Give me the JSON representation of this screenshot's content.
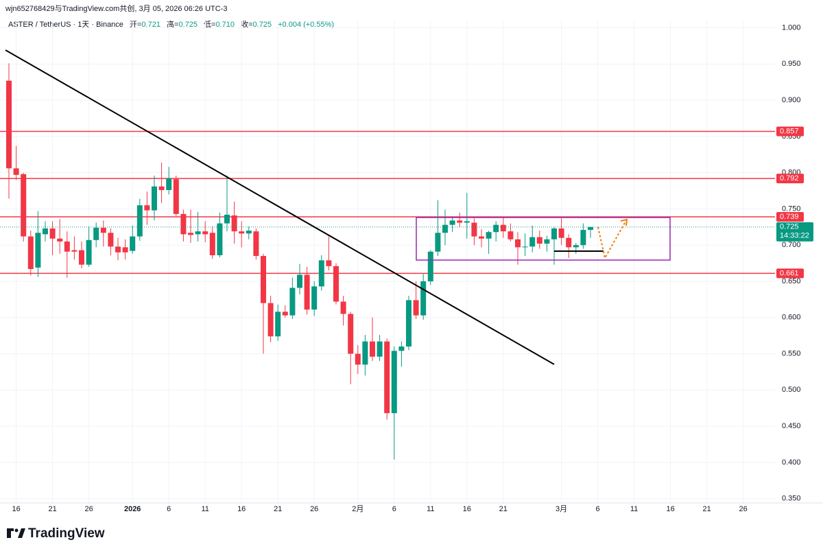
{
  "header": {
    "source": "wjn652768429与TradingView.com共创, 3月 05, 2026 06:26 UTC-3",
    "symbol": "ASTER / TetherUS · 1天 · Binance",
    "fields": [
      {
        "label": "开=",
        "value": "0.721"
      },
      {
        "label": "高=",
        "value": "0.725"
      },
      {
        "label": "低=",
        "value": "0.710"
      },
      {
        "label": "收=",
        "value": "0.725"
      }
    ],
    "change": "+0.004 (+0.55%)"
  },
  "chart_data": {
    "type": "candlestick",
    "categories": [
      null,
      "16",
      null,
      null,
      null,
      null,
      "21",
      null,
      null,
      null,
      null,
      "26",
      null,
      null,
      null,
      null,
      null,
      "2026",
      null,
      null,
      null,
      null,
      "6",
      null,
      null,
      null,
      null,
      "11",
      null,
      null,
      null,
      null,
      "16",
      null,
      null,
      null,
      null,
      "21",
      null,
      null,
      null,
      null,
      "26",
      null,
      null,
      null,
      null,
      null,
      "2月",
      null,
      null,
      null,
      null,
      "6",
      null,
      null,
      null,
      null,
      "11",
      null,
      null,
      null,
      null,
      "16",
      null,
      null,
      null,
      null,
      "21",
      null,
      null,
      null,
      null,
      null,
      null,
      null,
      "3月",
      null,
      null,
      null,
      null,
      "6",
      null,
      null,
      null,
      null,
      "11",
      null,
      null,
      null,
      null,
      "16",
      null,
      null,
      null,
      null,
      "21",
      null,
      null,
      null,
      null,
      "26",
      null,
      null,
      null,
      null
    ],
    "open": [
      0.927,
      0.806,
      0.798,
      0.712,
      0.669,
      0.715,
      0.723,
      0.709,
      0.705,
      0.693,
      0.693,
      0.673,
      0.707,
      0.724,
      0.717,
      0.698,
      0.697,
      0.692,
      0.712,
      0.755,
      0.748,
      0.781,
      0.776,
      0.791,
      0.743,
      0.717,
      0.715,
      0.719,
      0.717,
      0.686,
      0.73,
      0.741,
      0.719,
      0.716,
      0.719,
      0.685,
      0.62,
      0.574,
      0.608,
      0.603,
      0.641,
      0.659,
      0.611,
      0.643,
      0.679,
      0.671,
      0.622,
      0.605,
      0.55,
      0.535,
      0.567,
      0.546,
      0.567,
      0.468,
      0.554,
      0.56,
      0.624,
      0.603,
      0.65,
      0.691,
      0.717,
      0.728,
      0.734,
      0.731,
      0.731,
      0.712,
      0.709,
      0.718,
      0.728,
      0.719,
      0.708,
      0.697,
      0.698,
      0.711,
      0.702,
      0.708,
      0.723,
      0.71,
      0.697,
      0.7,
      0.721,
      null,
      null,
      null,
      null,
      null,
      null,
      null,
      null,
      null,
      null,
      null,
      null,
      null,
      null,
      null,
      null,
      null,
      null,
      null,
      null,
      null,
      null,
      null,
      null,
      null
    ],
    "high": [
      0.951,
      0.837,
      0.8,
      0.72,
      0.747,
      0.733,
      0.733,
      0.736,
      0.719,
      0.712,
      0.705,
      0.726,
      0.731,
      0.734,
      0.723,
      0.71,
      0.708,
      0.727,
      0.764,
      0.774,
      0.796,
      0.814,
      0.808,
      0.796,
      0.749,
      0.749,
      0.746,
      0.733,
      0.726,
      0.745,
      0.796,
      0.76,
      0.733,
      0.726,
      0.723,
      0.688,
      0.63,
      0.618,
      0.617,
      0.655,
      0.674,
      0.67,
      0.65,
      0.686,
      0.712,
      0.675,
      0.63,
      0.608,
      0.562,
      0.576,
      0.6,
      0.576,
      0.571,
      0.56,
      0.567,
      0.63,
      0.65,
      0.66,
      0.693,
      0.762,
      0.749,
      0.74,
      0.745,
      0.772,
      0.737,
      0.722,
      0.72,
      0.733,
      0.739,
      0.73,
      0.718,
      0.716,
      0.727,
      0.72,
      0.713,
      0.725,
      0.737,
      0.715,
      0.703,
      0.73,
      0.725,
      null,
      null,
      null,
      null,
      null,
      null,
      null,
      null,
      null,
      null,
      null,
      null,
      null,
      null,
      null,
      null,
      null,
      null,
      null,
      null,
      null,
      null,
      null,
      null,
      null
    ],
    "low": [
      0.764,
      0.79,
      0.705,
      0.658,
      0.656,
      0.705,
      0.686,
      0.688,
      0.655,
      0.68,
      0.668,
      0.67,
      0.697,
      0.698,
      0.686,
      0.679,
      0.68,
      0.688,
      0.706,
      0.728,
      0.734,
      0.758,
      0.77,
      0.74,
      0.705,
      0.703,
      0.705,
      0.704,
      0.681,
      0.683,
      0.719,
      0.702,
      0.697,
      0.708,
      0.68,
      0.55,
      0.566,
      0.568,
      0.6,
      0.598,
      0.632,
      0.604,
      0.602,
      0.637,
      0.665,
      0.618,
      0.589,
      0.508,
      0.522,
      0.52,
      0.54,
      0.54,
      0.459,
      0.404,
      0.532,
      0.555,
      0.598,
      0.597,
      0.645,
      0.685,
      0.7,
      0.718,
      0.725,
      0.709,
      0.7,
      0.697,
      0.688,
      0.705,
      0.71,
      0.705,
      0.673,
      0.685,
      0.69,
      0.695,
      0.691,
      0.673,
      0.7,
      0.682,
      0.688,
      0.695,
      0.71,
      null,
      null,
      null,
      null,
      null,
      null,
      null,
      null,
      null,
      null,
      null,
      null,
      null,
      null,
      null,
      null,
      null,
      null,
      null,
      null,
      null,
      null,
      null,
      null,
      null
    ],
    "close": [
      0.806,
      0.797,
      0.712,
      0.667,
      0.717,
      0.723,
      0.709,
      0.705,
      0.691,
      0.691,
      0.673,
      0.707,
      0.724,
      0.717,
      0.698,
      0.69,
      0.69,
      0.712,
      0.755,
      0.748,
      0.781,
      0.776,
      0.792,
      0.743,
      0.715,
      0.714,
      0.719,
      0.715,
      0.686,
      0.73,
      0.742,
      0.719,
      0.716,
      0.72,
      0.685,
      0.62,
      0.574,
      0.608,
      0.603,
      0.641,
      0.659,
      0.611,
      0.643,
      0.679,
      0.671,
      0.622,
      0.605,
      0.55,
      0.535,
      0.567,
      0.546,
      0.567,
      0.468,
      0.554,
      0.56,
      0.624,
      0.603,
      0.65,
      0.691,
      0.717,
      0.728,
      0.734,
      0.731,
      0.733,
      0.712,
      0.709,
      0.718,
      0.728,
      0.719,
      0.708,
      0.697,
      0.698,
      0.711,
      0.702,
      0.708,
      0.723,
      0.71,
      0.697,
      0.7,
      0.721,
      0.725,
      null,
      null,
      null,
      null,
      null,
      null,
      null,
      null,
      null,
      null,
      null,
      null,
      null,
      null,
      null,
      null,
      null,
      null,
      null,
      null,
      null,
      null,
      null,
      null,
      null
    ],
    "up_color": "#089981",
    "down_color": "#f23645",
    "ylim": [
      0.344,
      1.01
    ],
    "yticks": [
      {
        "value": 1,
        "label": "1.000"
      },
      {
        "value": 0.95,
        "label": "0.950"
      },
      {
        "value": 0.9,
        "label": "0.900"
      },
      {
        "value": 0.85,
        "label": "0.850"
      },
      {
        "value": 0.8,
        "label": "0.800"
      },
      {
        "value": 0.75,
        "label": "0.750"
      },
      {
        "value": 0.7,
        "label": "0.700"
      },
      {
        "value": 0.65,
        "label": "0.650"
      },
      {
        "value": 0.6,
        "label": "0.600"
      },
      {
        "value": 0.55,
        "label": "0.550"
      },
      {
        "value": 0.5,
        "label": "0.500"
      },
      {
        "value": 0.45,
        "label": "0.450"
      },
      {
        "value": 0.4,
        "label": "0.400"
      },
      {
        "value": 0.35,
        "label": "0.350"
      }
    ],
    "grid": true,
    "levels": [
      0.857,
      0.792,
      0.739,
      0.661
    ],
    "level_color": "#f23645",
    "last_price": 0.725,
    "countdown": "14:33:22"
  },
  "logo": "TradingView"
}
